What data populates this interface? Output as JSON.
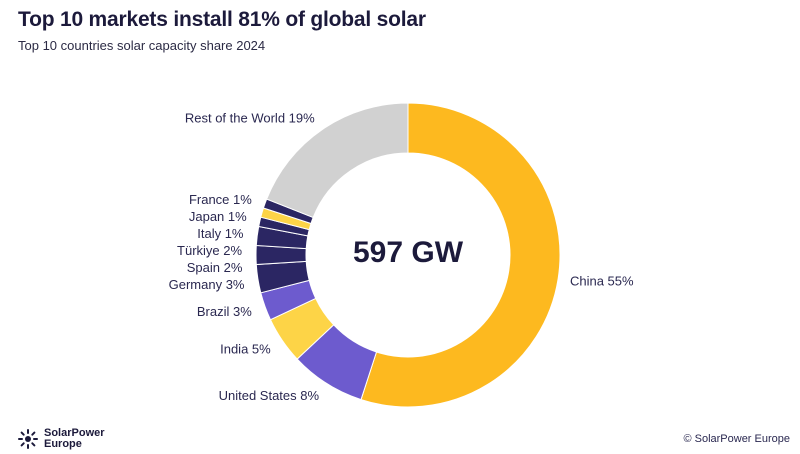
{
  "title": "Top 10 markets install 81% of global solar",
  "subtitle": "Top 10 countries solar capacity share 2024",
  "center_label": "597 GW",
  "logo": {
    "line1": "SolarPower",
    "line2": "Europe",
    "icon": "sun-burst-icon"
  },
  "copyright": "© SolarPower Europe",
  "colors": {
    "China": "#FDB91F",
    "United States": "#6D5BCE",
    "India": "#FDD447",
    "Brazil": "#6D5BCE",
    "Germany": "#2B2663",
    "Spain": "#2B2663",
    "Türkiye": "#2B2663",
    "Italy": "#2B2663",
    "Japan": "#FDD447",
    "France": "#2B2663",
    "Rest of the World": "#D1D1D1"
  },
  "chart_data": {
    "type": "pie",
    "donut": true,
    "categories": [
      "China",
      "United States",
      "India",
      "Brazil",
      "Germany",
      "Spain",
      "Türkiye",
      "Italy",
      "Japan",
      "France",
      "Rest of the World"
    ],
    "values": [
      55,
      8,
      5,
      3,
      3,
      2,
      2,
      1,
      1,
      1,
      19
    ],
    "labels": [
      "China 55%",
      "United States 8%",
      "India 5%",
      "Brazil 3%",
      "Germany 3%",
      "Spain 2%",
      "Türkiye 2%",
      "Italy 1%",
      "Japan 1%",
      "France 1%",
      "Rest of the World 19%"
    ],
    "unit": "%"
  }
}
